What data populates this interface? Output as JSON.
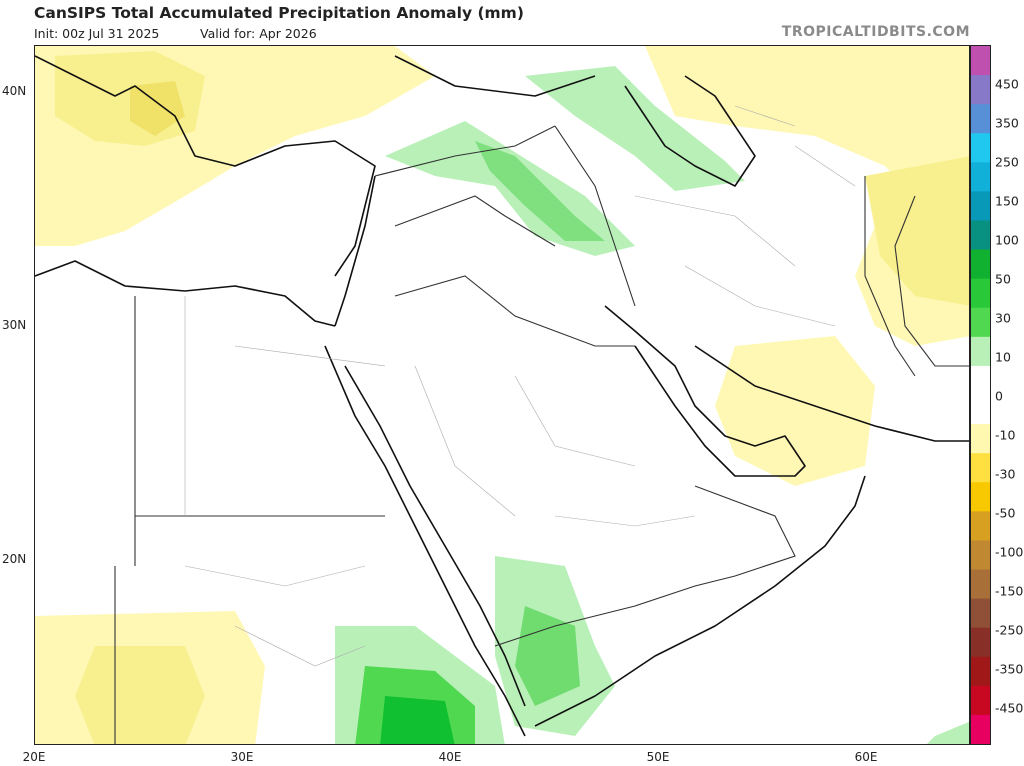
{
  "header": {
    "title": "CanSIPS Total Accumulated Precipitation Anomaly (mm)",
    "init": "Init: 00z Jul 31 2025",
    "valid": "Valid for: Apr 2026",
    "brand": "TROPICALTIDBITS.COM"
  },
  "axes": {
    "lat_labels": [
      {
        "text": "40N",
        "lat": 40
      },
      {
        "text": "30N",
        "lat": 30
      },
      {
        "text": "20N",
        "lat": 20
      }
    ],
    "lon_labels": [
      {
        "text": "20E",
        "lon": 20
      },
      {
        "text": "30E",
        "lon": 30
      },
      {
        "text": "40E",
        "lon": 40
      },
      {
        "text": "50E",
        "lon": 50
      },
      {
        "text": "60E",
        "lon": 60
      }
    ]
  },
  "colorbar": {
    "labels": [
      "450",
      "350",
      "250",
      "150",
      "100",
      "50",
      "30",
      "10",
      "0",
      "-10",
      "-30",
      "-50",
      "-100",
      "-150",
      "-250",
      "-350",
      "-450"
    ],
    "colors": [
      "#c050b0",
      "#8878c8",
      "#5890d8",
      "#20c8f0",
      "#10b0d8",
      "#0898b8",
      "#089080",
      "#10b030",
      "#28c838",
      "#50d850",
      "#b8f0b8",
      "#ffffff",
      "#ffffff",
      "#fff8b0",
      "#ffe040",
      "#f8c800",
      "#d8a020",
      "#c08830",
      "#a87038",
      "#905038",
      "#883028",
      "#a01818",
      "#c80820",
      "#e80060"
    ]
  },
  "map": {
    "legend": {
      "positive": "#b8f0b8",
      "positive_mid": "#50d850",
      "positive_strong": "#10b030",
      "negative": "#fff8b0",
      "negative_mid": "#f8f08a"
    }
  }
}
